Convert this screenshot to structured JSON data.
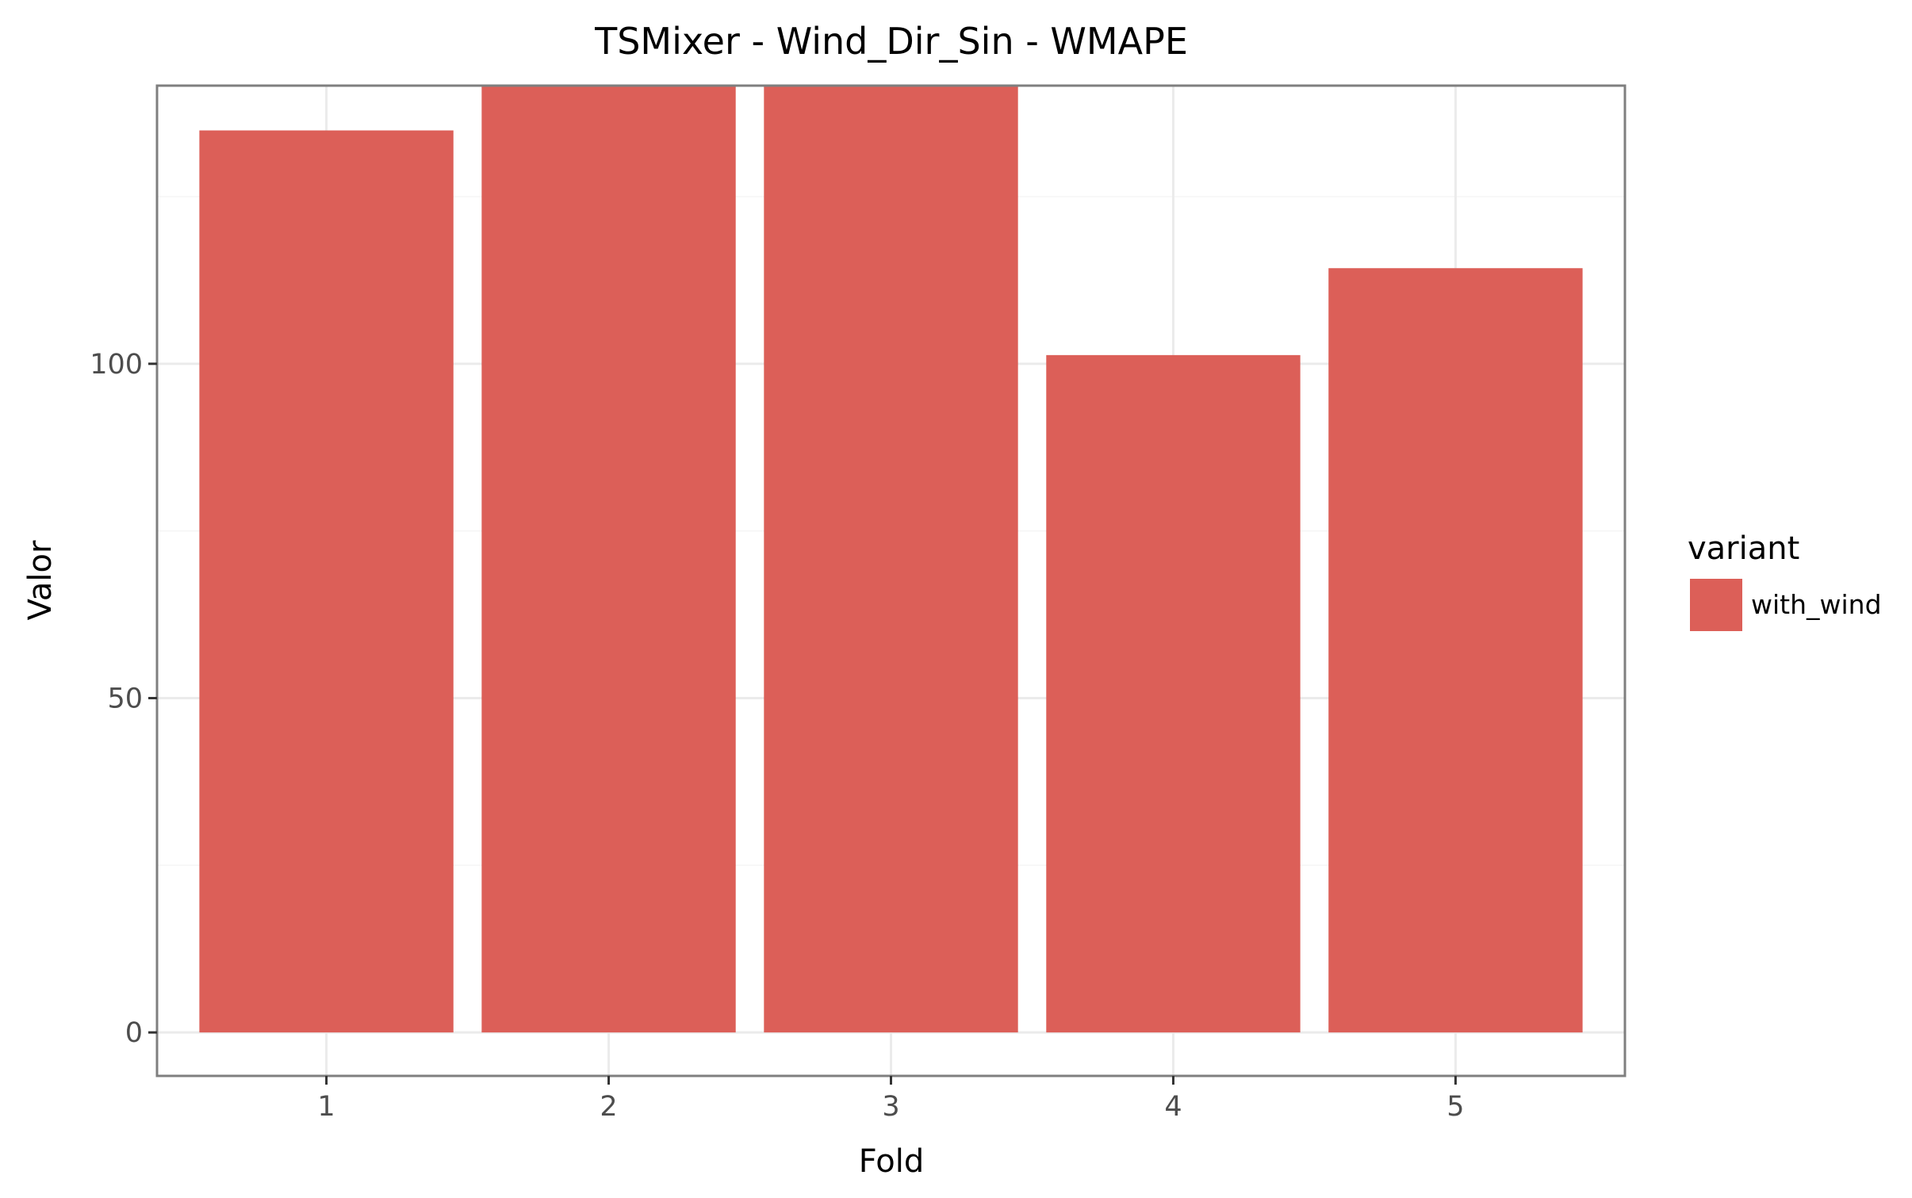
{
  "chart_data": {
    "type": "bar",
    "title": "TSMixer - Wind_Dir_Sin - WMAPE",
    "xlabel": "Fold",
    "ylabel": "Valor",
    "categories": [
      "1",
      "2",
      "3",
      "4",
      "5"
    ],
    "series": [
      {
        "name": "with_wind",
        "values": [
          134.9,
          141.6,
          141.6,
          101.3,
          114.3
        ],
        "color": "#dc5f58"
      }
    ],
    "ylim": [
      -6.5,
      141.6
    ],
    "yticks": [
      0,
      50,
      100
    ],
    "y_minor_ticks": [
      25,
      75,
      125
    ],
    "grid": true,
    "legend": {
      "title": "variant",
      "position": "right"
    },
    "colors": {
      "bar": "#dc5f58",
      "grid": "#ebebeb",
      "panel_border": "#7f7f7f"
    }
  }
}
